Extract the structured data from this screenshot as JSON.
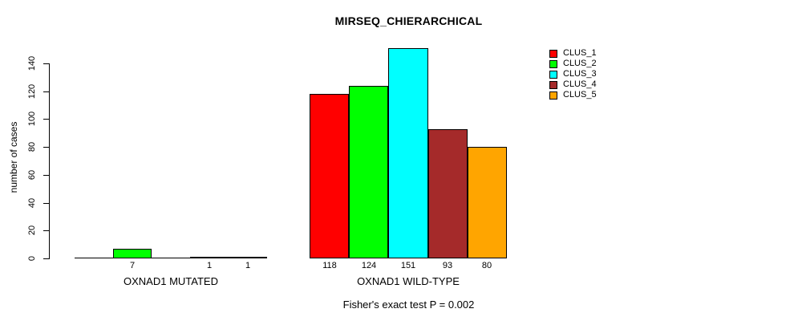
{
  "chart_data": {
    "type": "bar",
    "title": "MIRSEQ_CHIERARCHICAL",
    "ylabel": "number of cases",
    "xlabel": "",
    "ylim": [
      0,
      151
    ],
    "yticks": [
      0,
      20,
      40,
      60,
      80,
      100,
      120,
      140
    ],
    "grid": false,
    "legend_position": "top-right",
    "categories": [
      "OXNAD1 MUTATED",
      "OXNAD1 WILD-TYPE"
    ],
    "series": [
      {
        "name": "CLUS_1",
        "color": "#FF0000",
        "values": [
          0,
          118
        ]
      },
      {
        "name": "CLUS_2",
        "color": "#00FF00",
        "values": [
          7,
          124
        ]
      },
      {
        "name": "CLUS_3",
        "color": "#00FFFF",
        "values": [
          0,
          151
        ]
      },
      {
        "name": "CLUS_4",
        "color": "#A52A2A",
        "values": [
          1,
          93
        ]
      },
      {
        "name": "CLUS_5",
        "color": "#FFA500",
        "values": [
          1,
          80
        ]
      }
    ],
    "value_labels": [
      [
        "",
        "7",
        "",
        "1",
        "1"
      ],
      [
        "118",
        "124",
        "151",
        "93",
        "80"
      ]
    ],
    "footnote": "Fisher's exact test P = 0.002"
  }
}
